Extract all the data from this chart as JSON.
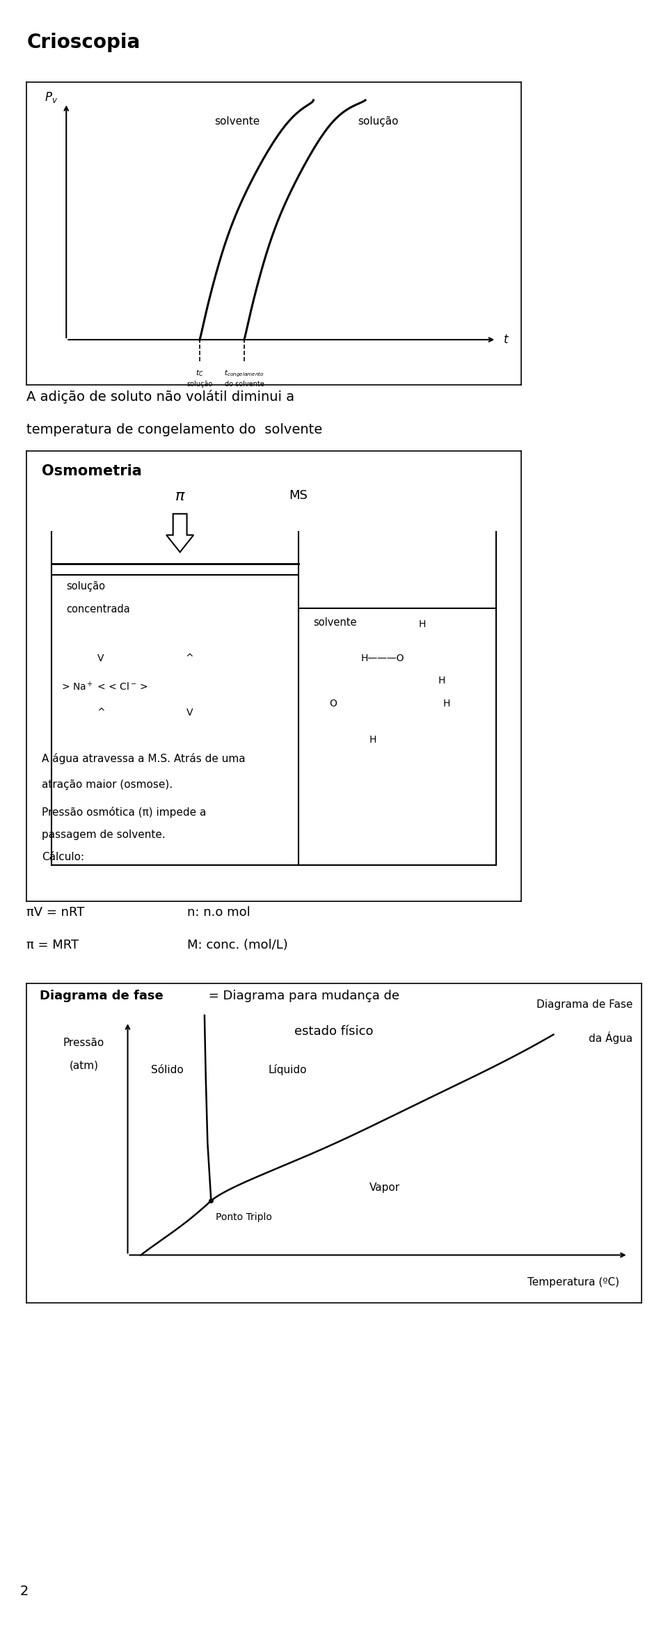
{
  "bg_color": "#ffffff",
  "section1_title": "Crioscopia",
  "section1_caption1": "A adição de soluto não volátil diminui a",
  "section1_caption2": "temperatura de congelamento do  solvente",
  "section2_title": "Osmometria",
  "section2_text1": "A água atravessa a M.S. Atrás de uma",
  "section2_text2": "atração maior (osmose).",
  "section2_text3": "Pressão osmótica (π) impede a",
  "section2_text4": "passagem de solvente.",
  "section2_text5": "Cálculo:",
  "section2_eq1": "πV = nRT",
  "section2_eq1b": "n: n.o mol",
  "section2_eq2": "π = MRT",
  "section2_eq2b": "M: conc. (mol/L)",
  "section3_title_bold": "Diagrama de fase",
  "section3_title_rest": " = Diagrama para mudança de",
  "section3_title2": "estado físico",
  "section3_label_pressure": "Pressão",
  "section3_label_pressure2": "(atm)",
  "section3_label_temp": "Temperatura (ºC)",
  "section3_label_liquido": "Líquido",
  "section3_label_solido": "Sólido",
  "section3_label_vapor": "Vapor",
  "section3_label_ponto": "Ponto Triplo",
  "section3_label_diagrama1": "Diagrama de Fase",
  "section3_label_diagrama2": "da Água",
  "page_number": "2"
}
